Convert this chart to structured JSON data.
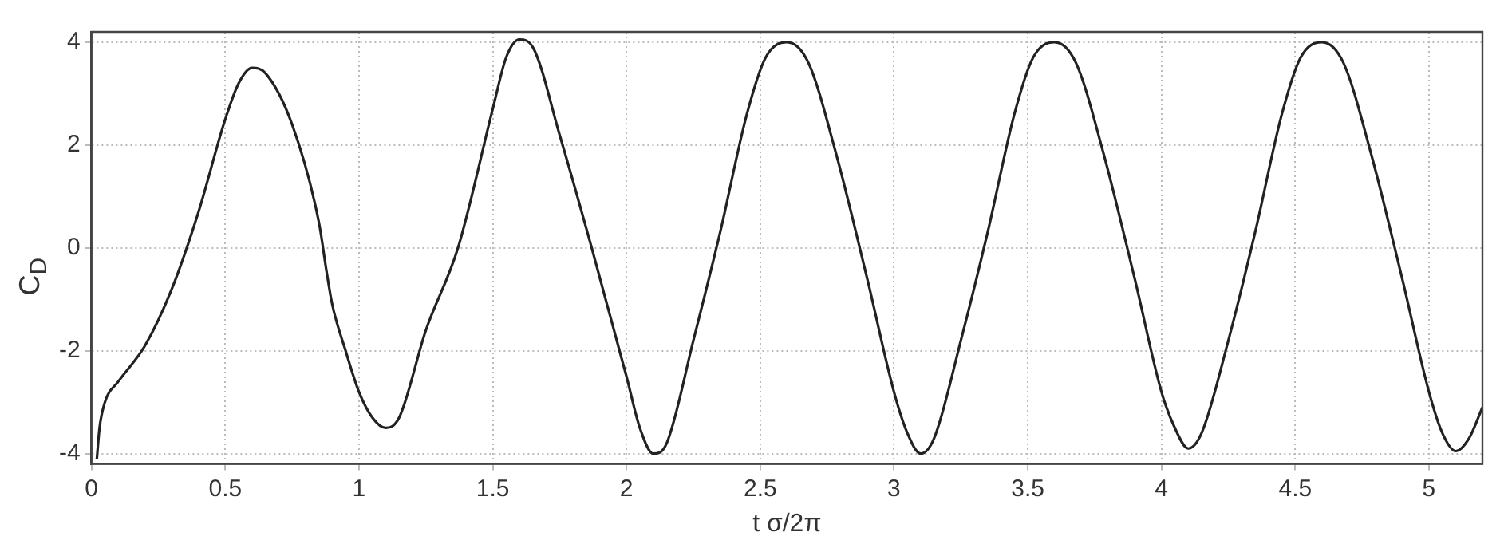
{
  "chart_data": {
    "type": "line",
    "xlabel": "t σ/2π",
    "ylabel": "C$_{D}$",
    "x": [
      0.02,
      0.03,
      0.05,
      0.1,
      0.2,
      0.3,
      0.4,
      0.5,
      0.55,
      0.6,
      0.65,
      0.75,
      0.85,
      0.88,
      0.9,
      0.95,
      1.0,
      1.05,
      1.1,
      1.15,
      1.25,
      1.37,
      1.5,
      1.55,
      1.6,
      1.65,
      1.75,
      1.87,
      2.0,
      2.05,
      2.1,
      2.15,
      2.25,
      2.35,
      2.45,
      2.52,
      2.6,
      2.68,
      2.78,
      2.9,
      3.0,
      3.05,
      3.1,
      3.15,
      3.25,
      3.35,
      3.45,
      3.52,
      3.6,
      3.68,
      3.78,
      3.9,
      4.0,
      4.05,
      4.1,
      4.15,
      4.25,
      4.35,
      4.45,
      4.52,
      4.6,
      4.68,
      4.78,
      4.9,
      5.0,
      5.05,
      5.1,
      5.15,
      5.2
    ],
    "series": [
      {
        "color": "#222222",
        "values": [
          -4.1,
          -3.5,
          -3.0,
          -2.6,
          -1.9,
          -0.8,
          0.7,
          2.5,
          3.2,
          3.5,
          3.4,
          2.4,
          0.5,
          -0.5,
          -1.1,
          -2.0,
          -2.8,
          -3.3,
          -3.5,
          -3.3,
          -1.6,
          0,
          2.7,
          3.7,
          4.05,
          3.9,
          2.2,
          0,
          -2.5,
          -3.5,
          -4.0,
          -3.8,
          -1.8,
          0.3,
          2.6,
          3.7,
          4.0,
          3.6,
          1.9,
          -0.6,
          -2.8,
          -3.6,
          -4.0,
          -3.7,
          -1.8,
          0.3,
          2.6,
          3.7,
          4.0,
          3.6,
          1.9,
          -0.6,
          -2.8,
          -3.5,
          -3.9,
          -3.6,
          -1.8,
          0.3,
          2.6,
          3.7,
          4.0,
          3.6,
          1.9,
          -0.6,
          -2.8,
          -3.6,
          -3.95,
          -3.7,
          -3.1
        ]
      }
    ],
    "xlim": [
      0,
      5.2
    ],
    "xticks": [
      0,
      0.5,
      1,
      1.5,
      2,
      2.5,
      3,
      3.5,
      4,
      4.5,
      5
    ],
    "ylim": [
      -4.2,
      4.2
    ],
    "yticks": [
      -4,
      -2,
      0,
      2,
      4
    ],
    "grid": true,
    "legend": false,
    "marker": "none",
    "line_style": "solid"
  }
}
